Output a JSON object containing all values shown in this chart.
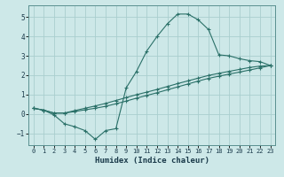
{
  "xlabel": "Humidex (Indice chaleur)",
  "background_color": "#cde8e8",
  "grid_color": "#aacece",
  "line_color": "#2a7068",
  "xlim": [
    -0.5,
    23.5
  ],
  "ylim": [
    -1.6,
    5.6
  ],
  "xticks": [
    0,
    1,
    2,
    3,
    4,
    5,
    6,
    7,
    8,
    9,
    10,
    11,
    12,
    13,
    14,
    15,
    16,
    17,
    18,
    19,
    20,
    21,
    22,
    23
  ],
  "yticks": [
    -1,
    0,
    1,
    2,
    3,
    4,
    5
  ],
  "line1_x": [
    0,
    1,
    2,
    3,
    4,
    5,
    6,
    7,
    8,
    9,
    10,
    11,
    12,
    13,
    14,
    15,
    16,
    17,
    18,
    19,
    20,
    21,
    22,
    23
  ],
  "line1_y": [
    0.3,
    0.2,
    -0.05,
    -0.5,
    -0.65,
    -0.85,
    -1.3,
    -0.85,
    -0.75,
    1.35,
    2.2,
    3.25,
    4.0,
    4.65,
    5.15,
    5.15,
    4.85,
    4.35,
    3.05,
    3.0,
    2.85,
    2.75,
    2.7,
    2.5
  ],
  "line2_x": [
    0,
    3,
    23
  ],
  "line2_y": [
    0.3,
    0.05,
    2.5
  ],
  "line3_x": [
    0,
    3,
    23
  ],
  "line3_y": [
    0.3,
    0.05,
    2.5
  ],
  "line2_full_x": [
    0,
    1,
    2,
    3,
    4,
    5,
    6,
    7,
    8,
    9,
    10,
    11,
    12,
    13,
    14,
    15,
    16,
    17,
    18,
    19,
    20,
    21,
    22,
    23
  ],
  "line2_full_y": [
    0.3,
    0.2,
    0.05,
    0.05,
    0.18,
    0.3,
    0.42,
    0.55,
    0.7,
    0.85,
    1.0,
    1.13,
    1.27,
    1.42,
    1.57,
    1.71,
    1.85,
    1.99,
    2.1,
    2.2,
    2.3,
    2.4,
    2.47,
    2.5
  ],
  "line3_full_x": [
    0,
    1,
    2,
    3,
    4,
    5,
    6,
    7,
    8,
    9,
    10,
    11,
    12,
    13,
    14,
    15,
    16,
    17,
    18,
    19,
    20,
    21,
    22,
    23
  ],
  "line3_full_y": [
    0.3,
    0.2,
    0.05,
    0.05,
    0.13,
    0.22,
    0.3,
    0.4,
    0.53,
    0.67,
    0.82,
    0.96,
    1.1,
    1.25,
    1.4,
    1.55,
    1.7,
    1.84,
    1.95,
    2.06,
    2.16,
    2.27,
    2.38,
    2.5
  ]
}
